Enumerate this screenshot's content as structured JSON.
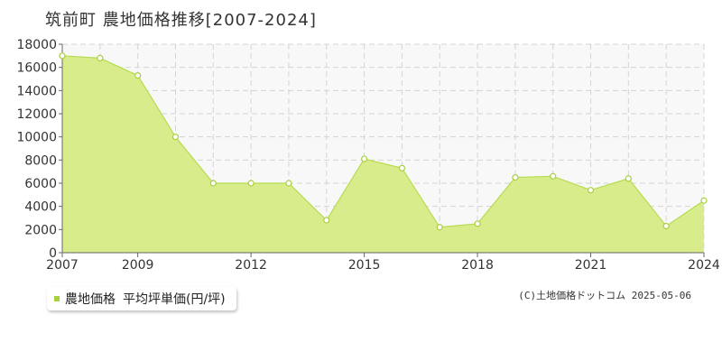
{
  "title": "筑前町 農地価格推移[2007-2024]",
  "legend": {
    "series_label": "農地価格",
    "unit_label": "平均坪単価(円/坪)"
  },
  "copyright": "(C)土地価格ドットコム 2025-05-06",
  "colors": {
    "area_fill": "#d9ec8c",
    "line": "#b5dc50",
    "marker_fill": "#ffffff",
    "marker_stroke": "#a8d040",
    "legend_marker": "#a8d040",
    "plot_bg": "#f8f8f8",
    "grid": "#d4d4d4",
    "axis": "#666666"
  },
  "chart_data": {
    "type": "area",
    "title": "筑前町 農地価格推移[2007-2024]",
    "x": [
      2007,
      2008,
      2009,
      2010,
      2011,
      2012,
      2013,
      2014,
      2015,
      2016,
      2017,
      2018,
      2019,
      2020,
      2021,
      2022,
      2023,
      2024
    ],
    "series": [
      {
        "name": "農地価格",
        "values": [
          17000,
          16800,
          15300,
          10000,
          6000,
          6000,
          6000,
          2800,
          8100,
          7300,
          2200,
          2500,
          6500,
          6600,
          5400,
          6400,
          2300,
          4500
        ]
      }
    ],
    "xlim": [
      2007,
      2024
    ],
    "ylim": [
      0,
      18000
    ],
    "x_ticks": [
      2007,
      2009,
      2012,
      2015,
      2018,
      2021,
      2024
    ],
    "x_gridlines": [
      2007,
      2008,
      2009,
      2010,
      2011,
      2012,
      2013,
      2014,
      2015,
      2016,
      2017,
      2018,
      2019,
      2020,
      2021,
      2022,
      2023,
      2024
    ],
    "y_ticks": [
      0,
      2000,
      4000,
      6000,
      8000,
      10000,
      12000,
      14000,
      16000,
      18000
    ],
    "xlabel": "",
    "ylabel": "",
    "grid": true,
    "legend_position": "bottom-left"
  }
}
